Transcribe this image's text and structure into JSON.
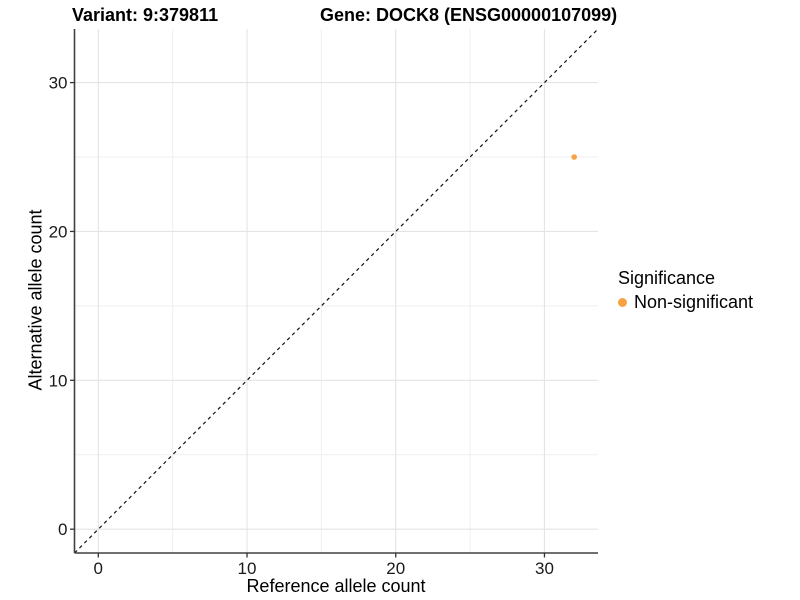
{
  "chart_data": {
    "type": "scatter",
    "titles": {
      "variant": "Variant: 9:379811",
      "gene": "Gene: DOCK8 (ENSG00000107099)"
    },
    "xlabel": "Reference allele count",
    "ylabel": "Alternative allele count",
    "xlim": [
      -1.6,
      33.6
    ],
    "ylim": [
      -1.6,
      33.6
    ],
    "x_ticks": [
      0,
      10,
      20,
      30
    ],
    "y_ticks": [
      0,
      10,
      20,
      30
    ],
    "x_minor_ticks": [
      5,
      15,
      25
    ],
    "y_minor_ticks": [
      5,
      15,
      25
    ],
    "grid": "major+minor",
    "reference_line": {
      "type": "identity",
      "style": "dashed",
      "color": "#111111"
    },
    "series": [
      {
        "name": "Non-significant",
        "color": "#F9A242",
        "points": [
          {
            "x": 32,
            "y": 25
          }
        ]
      }
    ],
    "legend": {
      "title": "Significance",
      "position": "right"
    },
    "colors": {
      "grid_major": "#E4E4E4",
      "grid_minor": "#EFEFEF",
      "axis_line": "#404040",
      "tick_mark": "#333333",
      "tick_label": "#1a1a1a",
      "background": "#FFFFFF"
    }
  }
}
